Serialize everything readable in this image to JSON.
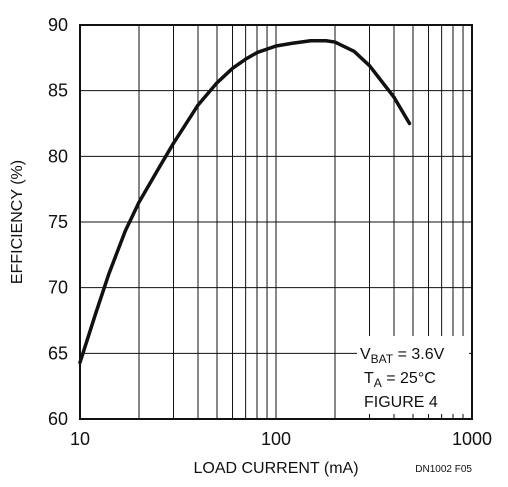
{
  "chart_data": {
    "type": "line",
    "title": "",
    "xlabel": "LOAD CURRENT (mA)",
    "ylabel": "EFFICIENCY (%)",
    "xscale": "log",
    "xlim": [
      10,
      1000
    ],
    "ylim": [
      60,
      90
    ],
    "xticks": [
      10,
      100,
      1000
    ],
    "xtick_labels": [
      "10",
      "100",
      "1000"
    ],
    "yticks": [
      60,
      65,
      70,
      75,
      80,
      85,
      90
    ],
    "ytick_labels": [
      "60",
      "65",
      "70",
      "75",
      "80",
      "85",
      "90"
    ],
    "grid": true,
    "line_color": "#111111",
    "series": [
      {
        "x": [
          10,
          12,
          14,
          17,
          20,
          25,
          30,
          40,
          50,
          60,
          70,
          80,
          100,
          120,
          150,
          180,
          200,
          250,
          300,
          400,
          480
        ],
        "values": [
          64.3,
          68.0,
          71.0,
          74.3,
          76.5,
          79.0,
          81.0,
          83.9,
          85.6,
          86.7,
          87.4,
          87.9,
          88.4,
          88.6,
          88.8,
          88.8,
          88.7,
          88.0,
          86.9,
          84.5,
          82.5
        ]
      }
    ],
    "annotations": {
      "v_main": "V",
      "v_sub": "BAT",
      "v_val": " = 3.6V",
      "t_main": "T",
      "t_sub": "A",
      "t_val": " = 25°C",
      "figure": "FIGURE 4"
    },
    "code": "DN1002 F05"
  }
}
